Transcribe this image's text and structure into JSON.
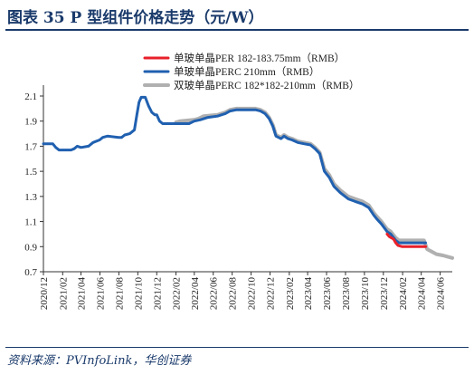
{
  "header": {
    "title": "图表 35   P 型组件价格走势（元/W）"
  },
  "footer": {
    "source": "资料来源：PVInfoLink，华创证券"
  },
  "chart_data": {
    "type": "line",
    "title": "P 型组件价格走势（元/W）",
    "xlabel": "",
    "ylabel": "",
    "ylim": [
      0.7,
      2.15
    ],
    "yticks": [
      0.7,
      0.9,
      1.1,
      1.3,
      1.5,
      1.7,
      1.9,
      2.1
    ],
    "ytick_labels": [
      "0.7",
      "0.9",
      "1.1",
      "1.3",
      "1.5",
      "1.7",
      "1.9",
      "2.1"
    ],
    "x_range": [
      "2020-12",
      "2024-07"
    ],
    "xtick_labels": [
      "2020/12",
      "2021/02",
      "2021/04",
      "2021/06",
      "2021/08",
      "2021/10",
      "2021/12",
      "2022/02",
      "2022/04",
      "2022/06",
      "2022/08",
      "2022/10",
      "2022/12",
      "2023/02",
      "2023/04",
      "2023/06",
      "2023/08",
      "2023/10",
      "2023/12",
      "2024/02",
      "2024/04",
      "2024/06"
    ],
    "legend_position": "top-center",
    "grid": false,
    "series": [
      {
        "name": "单玻单晶PER 182-183.75mm（RMB）",
        "color": "#e8202a",
        "width": 3,
        "points": [
          [
            "2023-12-13",
            1.0
          ],
          [
            "2023-12-20",
            0.98
          ],
          [
            "2024-01-03",
            0.96
          ],
          [
            "2024-01-10",
            0.93
          ],
          [
            "2024-01-17",
            0.91
          ],
          [
            "2024-01-31",
            0.9
          ],
          [
            "2024-02-28",
            0.9
          ],
          [
            "2024-03-31",
            0.9
          ],
          [
            "2024-04-15",
            0.9
          ]
        ]
      },
      {
        "name": "单玻单晶PERC 210mm（RMB）",
        "color": "#2060b0",
        "width": 3,
        "points": [
          [
            "2020-12-01",
            1.72
          ],
          [
            "2020-12-31",
            1.72
          ],
          [
            "2021-01-10",
            1.69
          ],
          [
            "2021-01-20",
            1.67
          ],
          [
            "2021-02-28",
            1.67
          ],
          [
            "2021-03-10",
            1.68
          ],
          [
            "2021-03-20",
            1.7
          ],
          [
            "2021-04-01",
            1.69
          ],
          [
            "2021-04-25",
            1.7
          ],
          [
            "2021-05-10",
            1.73
          ],
          [
            "2021-05-31",
            1.75
          ],
          [
            "2021-06-10",
            1.77
          ],
          [
            "2021-06-25",
            1.78
          ],
          [
            "2021-07-31",
            1.77
          ],
          [
            "2021-08-10",
            1.77
          ],
          [
            "2021-08-20",
            1.79
          ],
          [
            "2021-09-05",
            1.8
          ],
          [
            "2021-09-20",
            1.83
          ],
          [
            "2021-09-28",
            1.95
          ],
          [
            "2021-10-05",
            2.05
          ],
          [
            "2021-10-12",
            2.09
          ],
          [
            "2021-10-25",
            2.09
          ],
          [
            "2021-11-05",
            2.02
          ],
          [
            "2021-11-15",
            1.97
          ],
          [
            "2021-11-25",
            1.95
          ],
          [
            "2021-12-01",
            1.95
          ],
          [
            "2021-12-10",
            1.9
          ],
          [
            "2021-12-20",
            1.88
          ],
          [
            "2022-02-15",
            1.88
          ],
          [
            "2022-03-15",
            1.88
          ],
          [
            "2022-04-01",
            1.9
          ],
          [
            "2022-04-20",
            1.91
          ],
          [
            "2022-05-15",
            1.93
          ],
          [
            "2022-06-15",
            1.94
          ],
          [
            "2022-07-10",
            1.96
          ],
          [
            "2022-07-25",
            1.98
          ],
          [
            "2022-08-15",
            1.99
          ],
          [
            "2022-09-10",
            1.99
          ],
          [
            "2022-10-15",
            1.99
          ],
          [
            "2022-10-31",
            1.98
          ],
          [
            "2022-11-15",
            1.96
          ],
          [
            "2022-11-28",
            1.92
          ],
          [
            "2022-12-10",
            1.86
          ],
          [
            "2022-12-20",
            1.78
          ],
          [
            "2023-01-05",
            1.76
          ],
          [
            "2023-01-15",
            1.78
          ],
          [
            "2023-01-28",
            1.76
          ],
          [
            "2023-02-10",
            1.75
          ],
          [
            "2023-02-28",
            1.73
          ],
          [
            "2023-03-20",
            1.72
          ],
          [
            "2023-04-10",
            1.71
          ],
          [
            "2023-04-25",
            1.68
          ],
          [
            "2023-05-10",
            1.64
          ],
          [
            "2023-05-25",
            1.5
          ],
          [
            "2023-06-10",
            1.45
          ],
          [
            "2023-06-25",
            1.38
          ],
          [
            "2023-07-15",
            1.33
          ],
          [
            "2023-08-10",
            1.28
          ],
          [
            "2023-09-01",
            1.26
          ],
          [
            "2023-09-25",
            1.24
          ],
          [
            "2023-10-15",
            1.21
          ],
          [
            "2023-10-31",
            1.15
          ],
          [
            "2023-11-10",
            1.12
          ],
          [
            "2023-11-25",
            1.08
          ],
          [
            "2023-12-13",
            1.02
          ],
          [
            "2023-12-25",
            1.0
          ],
          [
            "2024-01-10",
            0.95
          ],
          [
            "2024-01-20",
            0.93
          ],
          [
            "2024-02-28",
            0.93
          ],
          [
            "2024-03-31",
            0.93
          ],
          [
            "2024-04-15",
            0.93
          ]
        ]
      },
      {
        "name": "双玻单晶PERC 182*182-210mm（RMB）",
        "color": "#b0b0b0",
        "width": 4,
        "points": [
          [
            "2022-02-01",
            1.89
          ],
          [
            "2022-02-15",
            1.9
          ],
          [
            "2022-03-31",
            1.91
          ],
          [
            "2022-04-15",
            1.92
          ],
          [
            "2022-05-01",
            1.94
          ],
          [
            "2022-06-15",
            1.95
          ],
          [
            "2022-07-10",
            1.97
          ],
          [
            "2022-07-25",
            1.99
          ],
          [
            "2022-08-15",
            2.0
          ],
          [
            "2022-10-15",
            2.0
          ],
          [
            "2022-10-31",
            1.99
          ],
          [
            "2022-11-15",
            1.97
          ],
          [
            "2022-11-28",
            1.93
          ],
          [
            "2022-12-10",
            1.87
          ],
          [
            "2022-12-20",
            1.79
          ],
          [
            "2023-01-05",
            1.77
          ],
          [
            "2023-01-15",
            1.79
          ],
          [
            "2023-01-28",
            1.77
          ],
          [
            "2023-02-10",
            1.76
          ],
          [
            "2023-02-28",
            1.74
          ],
          [
            "2023-03-20",
            1.73
          ],
          [
            "2023-04-10",
            1.72
          ],
          [
            "2023-04-25",
            1.69
          ],
          [
            "2023-05-10",
            1.65
          ],
          [
            "2023-05-25",
            1.52
          ],
          [
            "2023-06-10",
            1.47
          ],
          [
            "2023-06-25",
            1.4
          ],
          [
            "2023-07-15",
            1.35
          ],
          [
            "2023-08-10",
            1.3
          ],
          [
            "2023-09-01",
            1.28
          ],
          [
            "2023-09-25",
            1.26
          ],
          [
            "2023-10-15",
            1.23
          ],
          [
            "2023-10-31",
            1.17
          ],
          [
            "2023-11-10",
            1.14
          ],
          [
            "2023-11-25",
            1.1
          ],
          [
            "2023-12-13",
            1.04
          ],
          [
            "2023-12-25",
            1.02
          ],
          [
            "2024-01-10",
            0.97
          ],
          [
            "2024-01-20",
            0.95
          ],
          [
            "2024-02-28",
            0.95
          ],
          [
            "2024-03-31",
            0.95
          ],
          [
            "2024-04-10",
            0.95
          ],
          [
            "2024-04-20",
            0.88
          ],
          [
            "2024-05-05",
            0.86
          ],
          [
            "2024-05-20",
            0.84
          ],
          [
            "2024-06-10",
            0.83
          ],
          [
            "2024-06-25",
            0.82
          ],
          [
            "2024-07-10",
            0.81
          ]
        ]
      }
    ]
  }
}
